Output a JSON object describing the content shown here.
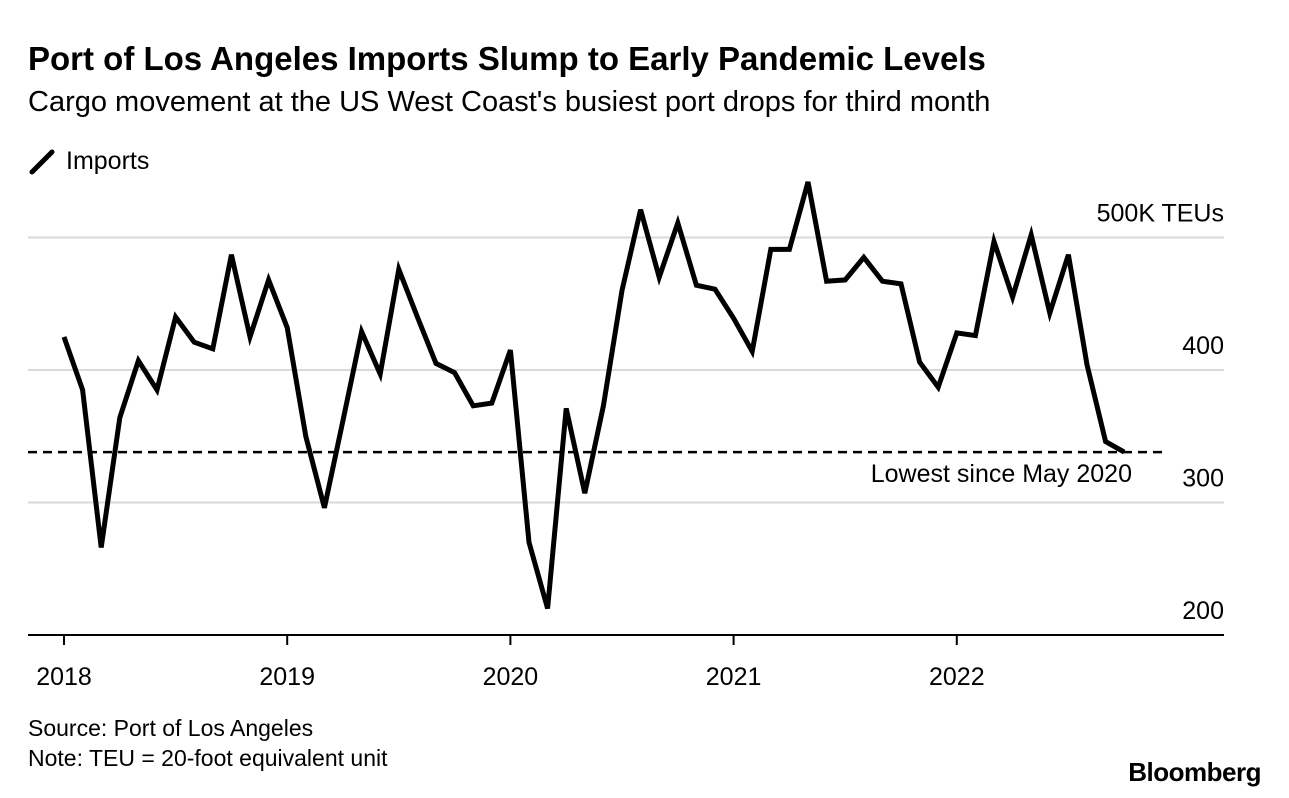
{
  "header": {
    "title": "Port of Los Angeles Imports Slump to Early Pandemic Levels",
    "subtitle": "Cargo movement at the US West Coast's busiest port drops for third month"
  },
  "footer": {
    "source": "Source: Port of Los Angeles",
    "note": "Note: TEU = 20-foot equivalent unit",
    "brand": "Bloomberg"
  },
  "colors": {
    "line": "#000000",
    "grid": "#d9d9d9",
    "text": "#000000"
  },
  "chart_data": {
    "type": "line",
    "title": "Port of Los Angeles Imports Slump to Early Pandemic Levels",
    "series": [
      {
        "name": "Imports",
        "x": [
          "2018-01",
          "2018-02",
          "2018-03",
          "2018-04",
          "2018-05",
          "2018-06",
          "2018-07",
          "2018-08",
          "2018-09",
          "2018-10",
          "2018-11",
          "2018-12",
          "2019-01",
          "2019-02",
          "2019-03",
          "2019-04",
          "2019-05",
          "2019-06",
          "2019-07",
          "2019-08",
          "2019-09",
          "2019-10",
          "2019-11",
          "2019-12",
          "2020-01",
          "2020-02",
          "2020-03",
          "2020-04",
          "2020-05",
          "2020-06",
          "2020-07",
          "2020-08",
          "2020-09",
          "2020-10",
          "2020-11",
          "2020-12",
          "2021-01",
          "2021-02",
          "2021-03",
          "2021-04",
          "2021-05",
          "2021-06",
          "2021-07",
          "2021-08",
          "2021-09",
          "2021-10",
          "2021-11",
          "2021-12",
          "2022-01",
          "2022-02",
          "2022-03",
          "2022-04",
          "2022-05",
          "2022-06",
          "2022-07",
          "2022-08",
          "2022-09",
          "2022-10"
        ],
        "values": [
          425,
          385,
          266,
          364,
          407,
          385,
          440,
          421,
          416,
          487,
          425,
          468,
          432,
          350,
          296,
          362,
          429,
          397,
          476,
          440,
          405,
          398,
          373,
          375,
          415,
          270,
          220,
          371,
          307,
          373,
          460,
          521,
          470,
          511,
          464,
          461,
          439,
          414,
          491,
          491,
          542,
          467,
          468,
          485,
          467,
          465,
          406,
          387,
          428,
          426,
          497,
          455,
          502,
          443,
          487,
          404,
          346,
          338
        ]
      }
    ],
    "reference_line": {
      "value": 338,
      "style": "dashed",
      "label": "Lowest since May 2020"
    },
    "y_axis": {
      "ticks": [
        200,
        300,
        400,
        500
      ],
      "tick_labels": [
        "200",
        "300",
        "400",
        "500K TEUs"
      ],
      "ylim": [
        200,
        500
      ],
      "position": "right"
    },
    "x_axis": {
      "ticks": [
        "2018-01",
        "2019-01",
        "2020-01",
        "2021-01",
        "2022-01"
      ],
      "tick_labels": [
        "2018",
        "2019",
        "2020",
        "2021",
        "2022"
      ]
    },
    "legend": {
      "entries": [
        "Imports"
      ],
      "placement": "top-left"
    },
    "grid": true
  }
}
